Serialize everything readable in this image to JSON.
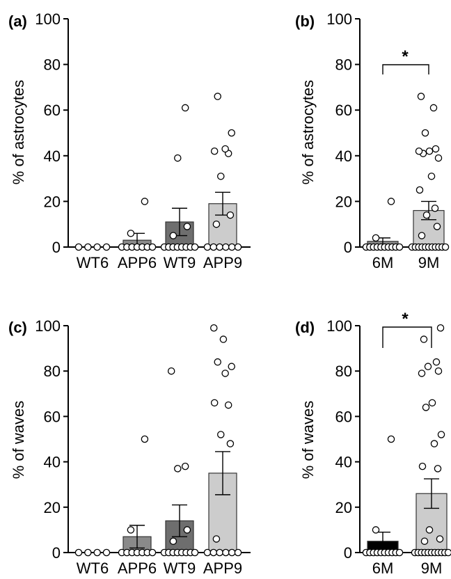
{
  "chart_data": [
    {
      "panel": "(a)",
      "type": "bar",
      "ylabel": "% of astrocytes",
      "ylim": [
        0,
        100
      ],
      "yticks": [
        0,
        20,
        40,
        60,
        80,
        100
      ],
      "categories": [
        "WT6",
        "APP6",
        "WT9",
        "APP9"
      ],
      "values": [
        0,
        3,
        11,
        19
      ],
      "sem": [
        0,
        3,
        6,
        5
      ],
      "bar_colors": [
        "#ffffff",
        "#8a8a8a",
        "#6e6e6e",
        "#cccccc"
      ],
      "points": [
        [
          0,
          0,
          0,
          0
        ],
        [
          0,
          0,
          0,
          0,
          0,
          0,
          0,
          6,
          20
        ],
        [
          0,
          0,
          0,
          0,
          0,
          0,
          0,
          0,
          5,
          9,
          39,
          61
        ],
        [
          0,
          0,
          0,
          0,
          0,
          0,
          10,
          14,
          31,
          41,
          42,
          43,
          50,
          66
        ]
      ]
    },
    {
      "panel": "(b)",
      "type": "bar",
      "ylabel": "% of astrocytes",
      "ylim": [
        0,
        100
      ],
      "yticks": [
        0,
        20,
        40,
        60,
        80,
        100
      ],
      "categories": [
        "6M",
        "9M"
      ],
      "values": [
        2.5,
        16
      ],
      "sem": [
        1.5,
        4
      ],
      "bar_colors": [
        "#8a8a8a",
        "#cccccc"
      ],
      "points": [
        [
          0,
          0,
          0,
          0,
          0,
          0,
          0,
          0,
          0,
          0,
          4,
          20
        ],
        [
          0,
          0,
          0,
          0,
          0,
          0,
          0,
          0,
          0,
          0,
          0,
          5,
          9,
          14,
          17,
          25,
          31,
          39,
          41,
          42,
          42,
          43,
          50,
          61,
          66
        ]
      ],
      "significance": "*"
    },
    {
      "panel": "(c)",
      "type": "bar",
      "ylabel": "% of waves",
      "ylim": [
        0,
        100
      ],
      "yticks": [
        0,
        20,
        40,
        60,
        80,
        100
      ],
      "categories": [
        "WT6",
        "APP6",
        "WT9",
        "APP9"
      ],
      "values": [
        0,
        7,
        14,
        35
      ],
      "sem": [
        0,
        5,
        7,
        9.5
      ],
      "bar_colors": [
        "#ffffff",
        "#8a8a8a",
        "#6e6e6e",
        "#cccccc"
      ],
      "points": [
        [
          0,
          0,
          0,
          0
        ],
        [
          0,
          0,
          0,
          0,
          0,
          0,
          0,
          10,
          50
        ],
        [
          0,
          0,
          0,
          0,
          0,
          0,
          0,
          0,
          5,
          10,
          37,
          38,
          80
        ],
        [
          0,
          0,
          0,
          0,
          0,
          0,
          6,
          48,
          52,
          65,
          66,
          79,
          82,
          84,
          94,
          99
        ]
      ]
    },
    {
      "panel": "(d)",
      "type": "bar",
      "ylabel": "% of waves",
      "ylim": [
        0,
        100
      ],
      "yticks": [
        0,
        20,
        40,
        60,
        80,
        100
      ],
      "categories": [
        "6M",
        "9M"
      ],
      "values": [
        5,
        26
      ],
      "sem": [
        4,
        6.5
      ],
      "bar_colors": [
        "#000000",
        "#cccccc"
      ],
      "points": [
        [
          0,
          0,
          0,
          0,
          0,
          0,
          0,
          0,
          0,
          0,
          10,
          50
        ],
        [
          0,
          0,
          0,
          0,
          0,
          0,
          0,
          0,
          0,
          0,
          0,
          5,
          6,
          10,
          37,
          38,
          48,
          52,
          64,
          66,
          79,
          80,
          82,
          84,
          94,
          99
        ]
      ],
      "significance": "*"
    }
  ]
}
